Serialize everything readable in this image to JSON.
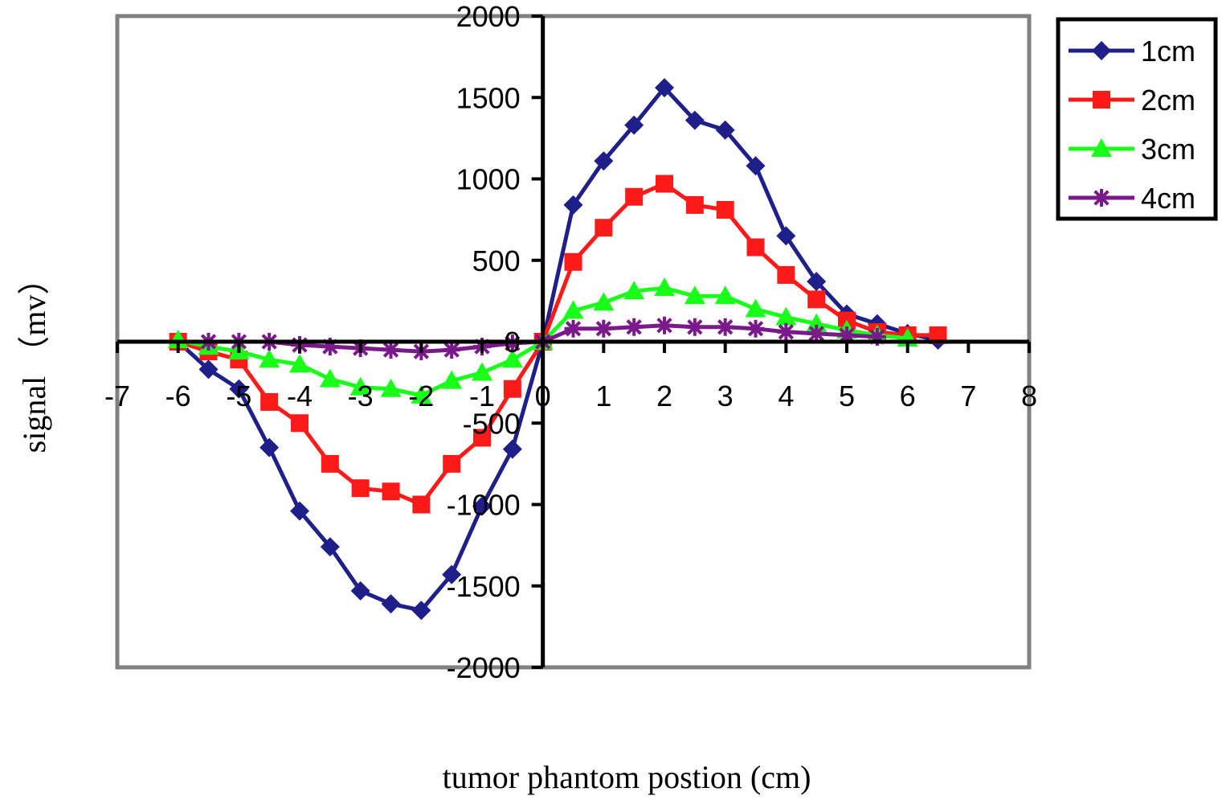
{
  "chart_data": {
    "type": "line",
    "xlabel": "tumor phantom postion (cm)",
    "ylabel": "signal （mv）",
    "xlim": [
      -7,
      8
    ],
    "ylim": [
      -2000,
      2000
    ],
    "x_ticks": [
      "-7",
      "-6",
      "-5",
      "-4",
      "-3",
      "-2",
      "-1",
      "0",
      "1",
      "2",
      "3",
      "4",
      "5",
      "6",
      "7",
      "8"
    ],
    "y_ticks": [
      "2000",
      "1500",
      "1000",
      "500",
      "0",
      "-500",
      "-1000",
      "-1500",
      "-2000"
    ],
    "legend_position": "top-right",
    "grid": false,
    "series": [
      {
        "name": "1cm",
        "color": "#1f1f8a",
        "marker": "diamond",
        "points": [
          [
            -6,
            0
          ],
          [
            -5.5,
            -170
          ],
          [
            -5,
            -290
          ],
          [
            -4.5,
            -650
          ],
          [
            -4,
            -1040
          ],
          [
            -3.5,
            -1260
          ],
          [
            -3,
            -1530
          ],
          [
            -2.5,
            -1610
          ],
          [
            -2,
            -1650
          ],
          [
            -1.5,
            -1430
          ],
          [
            -1,
            -1010
          ],
          [
            -0.5,
            -660
          ],
          [
            0,
            0
          ],
          [
            0.5,
            840
          ],
          [
            1,
            1110
          ],
          [
            1.5,
            1330
          ],
          [
            2,
            1560
          ],
          [
            2.5,
            1360
          ],
          [
            3,
            1300
          ],
          [
            3.5,
            1080
          ],
          [
            4,
            650
          ],
          [
            4.5,
            370
          ],
          [
            5,
            170
          ],
          [
            5.5,
            110
          ],
          [
            6,
            50
          ],
          [
            6.5,
            10
          ]
        ]
      },
      {
        "name": "2cm",
        "color": "#ff1a1a",
        "marker": "square",
        "points": [
          [
            -6,
            0
          ],
          [
            -5.5,
            -60
          ],
          [
            -5,
            -110
          ],
          [
            -4.5,
            -370
          ],
          [
            -4,
            -500
          ],
          [
            -3.5,
            -750
          ],
          [
            -3,
            -900
          ],
          [
            -2.5,
            -920
          ],
          [
            -2,
            -1000
          ],
          [
            -1.5,
            -750
          ],
          [
            -1,
            -590
          ],
          [
            -0.5,
            -290
          ],
          [
            0,
            0
          ],
          [
            0.5,
            490
          ],
          [
            1,
            700
          ],
          [
            1.5,
            890
          ],
          [
            2,
            970
          ],
          [
            2.5,
            840
          ],
          [
            3,
            810
          ],
          [
            3.5,
            580
          ],
          [
            4,
            410
          ],
          [
            4.5,
            260
          ],
          [
            5,
            130
          ],
          [
            5.5,
            60
          ],
          [
            6,
            40
          ],
          [
            6.5,
            40
          ]
        ]
      },
      {
        "name": "3cm",
        "color": "#1aff1a",
        "marker": "triangle",
        "points": [
          [
            -6,
            10
          ],
          [
            -5.5,
            -30
          ],
          [
            -5,
            -60
          ],
          [
            -4.5,
            -110
          ],
          [
            -4,
            -140
          ],
          [
            -3.5,
            -230
          ],
          [
            -3,
            -280
          ],
          [
            -2.5,
            -290
          ],
          [
            -2,
            -330
          ],
          [
            -1.5,
            -240
          ],
          [
            -1,
            -190
          ],
          [
            -0.5,
            -110
          ],
          [
            0,
            0
          ],
          [
            0.5,
            190
          ],
          [
            1,
            240
          ],
          [
            1.5,
            310
          ],
          [
            2,
            330
          ],
          [
            2.5,
            280
          ],
          [
            3,
            280
          ],
          [
            3.5,
            200
          ],
          [
            4,
            150
          ],
          [
            4.5,
            110
          ],
          [
            5,
            70
          ],
          [
            5.5,
            40
          ],
          [
            6,
            20
          ]
        ]
      },
      {
        "name": "4cm",
        "color": "#7a1a8a",
        "marker": "asterisk",
        "points": [
          [
            -5.5,
            0
          ],
          [
            -5,
            0
          ],
          [
            -4.5,
            0
          ],
          [
            -4,
            -20
          ],
          [
            -3.5,
            -30
          ],
          [
            -3,
            -40
          ],
          [
            -2.5,
            -50
          ],
          [
            -2,
            -60
          ],
          [
            -1.5,
            -50
          ],
          [
            -1,
            -30
          ],
          [
            -0.5,
            -10
          ],
          [
            0,
            0
          ],
          [
            0.5,
            80
          ],
          [
            1,
            80
          ],
          [
            1.5,
            90
          ],
          [
            2,
            100
          ],
          [
            2.5,
            90
          ],
          [
            3,
            90
          ],
          [
            3.5,
            80
          ],
          [
            4,
            60
          ],
          [
            4.5,
            50
          ],
          [
            5,
            40
          ],
          [
            5.5,
            30
          ]
        ]
      }
    ]
  }
}
